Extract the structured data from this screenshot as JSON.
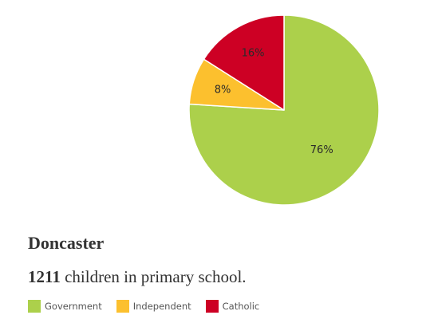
{
  "chart_data": {
    "type": "pie",
    "categories": [
      "Government",
      "Independent",
      "Catholic"
    ],
    "values": [
      76,
      8,
      16
    ],
    "labels": [
      "76%",
      "8%",
      "16%"
    ],
    "colors": [
      "#acd04b",
      "#fcc02e",
      "#cd0024"
    ],
    "start_angle_deg": 0,
    "direction": "clockwise",
    "legend": "bottom-left"
  },
  "title": "Doncaster",
  "subtitle": {
    "count": "1211",
    "text": " children in primary school."
  },
  "legend": [
    {
      "label": "Government",
      "color": "#acd04b"
    },
    {
      "label": "Independent",
      "color": "#fcc02e"
    },
    {
      "label": "Catholic",
      "color": "#cd0024"
    }
  ]
}
